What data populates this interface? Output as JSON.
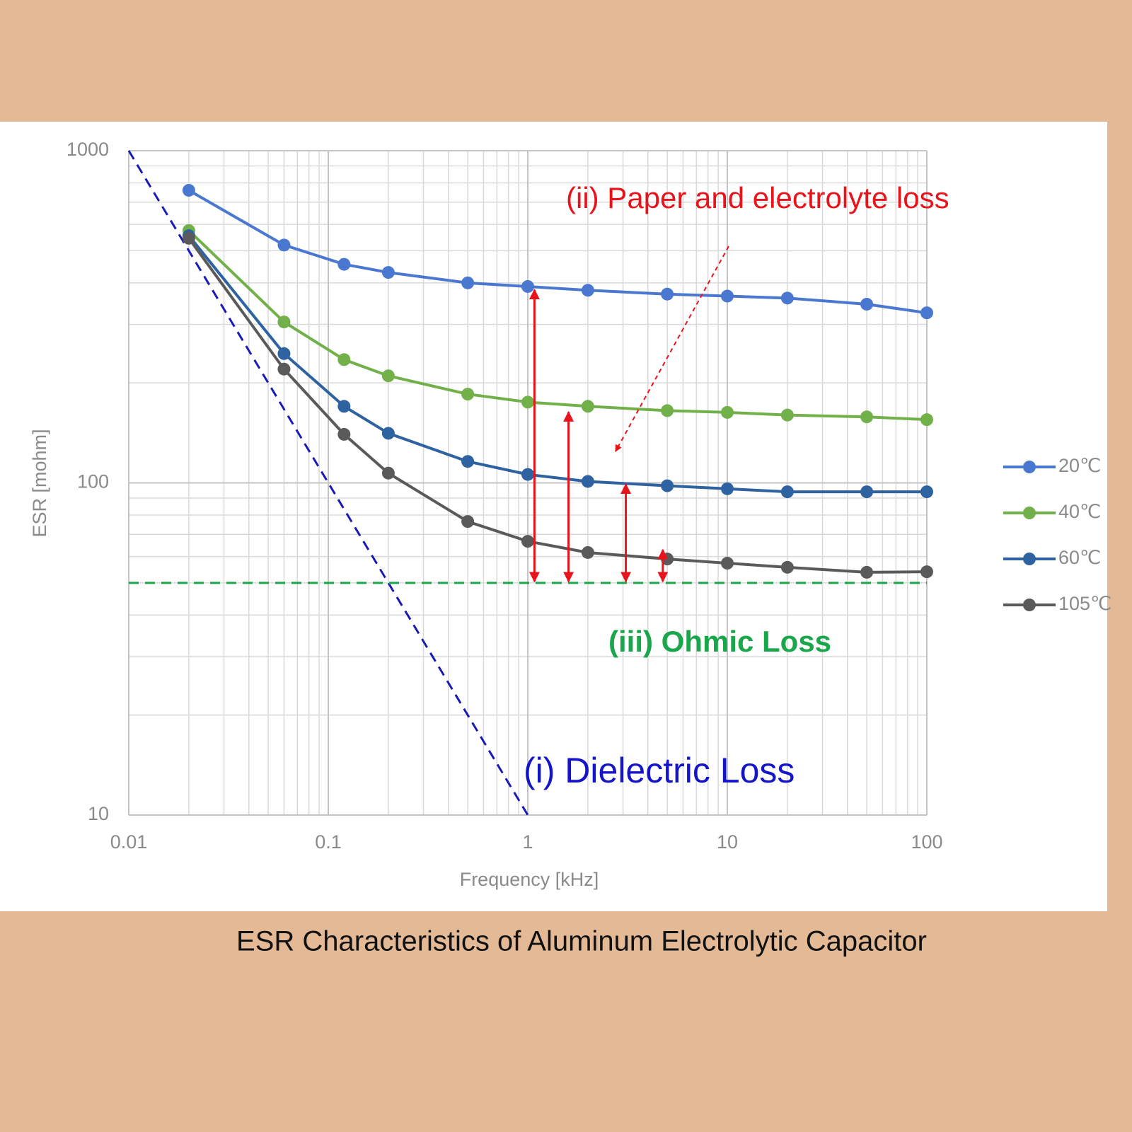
{
  "chart_data": {
    "type": "line",
    "title": "ESR Characteristics of Aluminum Electrolytic Capacitor",
    "x_label": "Frequency [kHz]",
    "y_label": "ESR [mohm]",
    "x": [
      0.02,
      0.06,
      0.12,
      0.2,
      0.5,
      1,
      2,
      5,
      10,
      20,
      50,
      100
    ],
    "series": [
      {
        "name": "20℃",
        "color": "#4a78d0",
        "values": [
          760,
          520,
          455,
          430,
          400,
          390,
          380,
          370,
          365,
          360,
          345,
          325
        ]
      },
      {
        "name": "40℃",
        "color": "#72b04a",
        "values": [
          575,
          305,
          235,
          210,
          185,
          175,
          170,
          165,
          163,
          160,
          158,
          155
        ]
      },
      {
        "name": "60℃",
        "color": "#2e62a0",
        "values": [
          555,
          245,
          170,
          141,
          116,
          106,
          101,
          98,
          96,
          94,
          94,
          94
        ]
      },
      {
        "name": "105℃",
        "color": "#5a5a5a",
        "values": [
          545,
          220,
          140,
          107,
          76.5,
          66.7,
          61.7,
          59,
          57.3,
          55.7,
          53.8,
          54
        ]
      }
    ],
    "xlim": [
      0.01,
      100
    ],
    "ylim": [
      10,
      1000
    ],
    "xticks": [
      0.01,
      0.1,
      1,
      10,
      100
    ],
    "yticks": [
      10,
      100,
      1000
    ],
    "log_x": true,
    "log_y": true,
    "grid": true,
    "legend": "right",
    "annotations": [
      {
        "text": "(ii) Paper and electrolyte loss",
        "color": "#e8141c"
      },
      {
        "text": "(iii) Ohmic Loss",
        "color": "#1aa64a"
      },
      {
        "text": "(i) Dielectric Loss",
        "color": "#1414c8"
      }
    ],
    "reference_lines": [
      {
        "x": [
          0.01,
          1
        ],
        "y": [
          1000,
          10
        ],
        "color": "#1a1ab4"
      },
      {
        "x": [
          0.01,
          100
        ],
        "y": [
          50,
          50
        ],
        "color": "#1aa64a"
      }
    ],
    "arrow_color": "#e8141c",
    "arrows": [
      {
        "x": 1.08,
        "y": [
          50,
          385
        ]
      },
      {
        "x": 1.6,
        "y": [
          50,
          165
        ]
      },
      {
        "x": 3.1,
        "y": [
          50,
          100
        ]
      },
      {
        "x": 4.75,
        "y": [
          50,
          63.5
        ]
      }
    ]
  }
}
